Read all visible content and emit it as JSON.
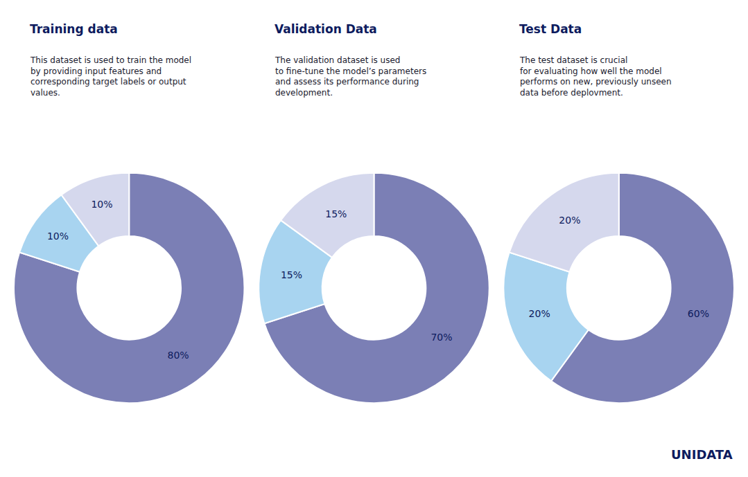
{
  "chart_data": [
    {
      "type": "pie",
      "title": "Training data",
      "subtitle": "This dataset is used to train the model\nby providing input features and\ncorresponding target labels or output\nvalues.",
      "values": [
        80,
        10,
        10
      ],
      "value_labels": [
        "80%",
        "10%",
        "10%"
      ],
      "colors": [
        "#7b7fb5",
        "#a8d4f0",
        "#d5d8ed"
      ],
      "data_labels": true
    },
    {
      "type": "pie",
      "title": "Validation Data",
      "subtitle": "The validation dataset is used\nto fine-tune the model’s parameters\nand assess its performance during\ndevelopment.",
      "values": [
        70,
        15,
        15
      ],
      "value_labels": [
        "70%",
        "15%",
        "15%"
      ],
      "colors": [
        "#7b7fb5",
        "#a8d4f0",
        "#d5d8ed"
      ],
      "data_labels": true
    },
    {
      "type": "pie",
      "title": "Test Data",
      "subtitle": "The test dataset is crucial\nfor evaluating how well the model\nperforms on new, previously unseen\ndata before deplovment.",
      "values": [
        60,
        20,
        20
      ],
      "value_labels": [
        "60%",
        "20%",
        "20%"
      ],
      "colors": [
        "#7b7fb5",
        "#a8d4f0",
        "#d5d8ed"
      ],
      "data_labels": true,
      "annotations": [
        "UNIDATA"
      ]
    }
  ]
}
